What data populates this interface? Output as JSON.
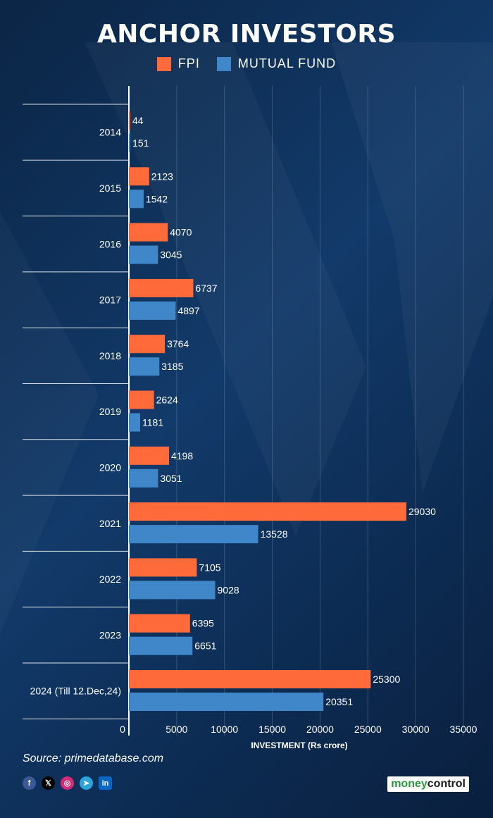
{
  "title": "ANCHOR INVESTORS",
  "legend": [
    {
      "label": "FPI",
      "color": "#ff6a3a"
    },
    {
      "label": "MUTUAL FUND",
      "color": "#3f87c9"
    }
  ],
  "source": "Source: primedatabase.com",
  "brand": {
    "part1": "money",
    "part2": "control"
  },
  "social_icons": [
    "facebook-icon",
    "x-icon",
    "instagram-icon",
    "telegram-icon",
    "linkedin-icon"
  ],
  "chart_data": {
    "type": "bar",
    "orientation": "horizontal",
    "categories": [
      "2014",
      "2015",
      "2016",
      "2017",
      "2018",
      "2019",
      "2020",
      "2021",
      "2022",
      "2023",
      "2024 (Till 12.Dec,24)"
    ],
    "series": [
      {
        "name": "FPI",
        "color": "#ff6a3a",
        "values": [
          44,
          2123,
          4070,
          6737,
          3764,
          2624,
          4198,
          29030,
          7105,
          6395,
          25300
        ]
      },
      {
        "name": "MUTUAL FUND",
        "color": "#3f87c9",
        "values": [
          151,
          1542,
          3045,
          4897,
          3185,
          1181,
          3051,
          13528,
          9028,
          6651,
          20351
        ]
      }
    ],
    "xlabel": "INVESTMENT (Rs crore)",
    "xlim": [
      0,
      35000
    ],
    "xticks": [
      0,
      5000,
      10000,
      15000,
      20000,
      25000,
      30000,
      35000
    ],
    "grid": "vertical",
    "legend_position": "top-center"
  }
}
